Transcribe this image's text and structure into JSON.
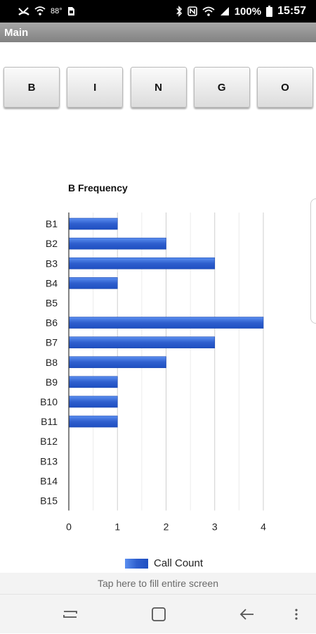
{
  "status_bar": {
    "temperature": "88°",
    "battery_percent": "100%",
    "time": "15:57"
  },
  "title_bar": {
    "title": "Main"
  },
  "buttons": [
    "B",
    "I",
    "N",
    "G",
    "O"
  ],
  "chart_data": {
    "type": "bar",
    "orientation": "horizontal",
    "title": "B Frequency",
    "categories": [
      "B1",
      "B2",
      "B3",
      "B4",
      "B5",
      "B6",
      "B7",
      "B8",
      "B9",
      "B10",
      "B11",
      "B12",
      "B13",
      "B14",
      "B15"
    ],
    "series": [
      {
        "name": "Call Count",
        "values": [
          1,
          2,
          3,
          1,
          0,
          4,
          3,
          2,
          1,
          1,
          1,
          0,
          0,
          0,
          0
        ]
      }
    ],
    "xlim": [
      0,
      4
    ],
    "x_ticks": [
      0,
      1,
      2,
      3,
      4
    ],
    "grid": true,
    "legend": "bottom",
    "bar_color": "#2f5fce"
  },
  "footer": {
    "hint": "Tap here to fill entire screen"
  },
  "nav_bar": {
    "icons": [
      "recent-apps-icon",
      "home-icon",
      "back-icon",
      "more-options-icon"
    ]
  }
}
